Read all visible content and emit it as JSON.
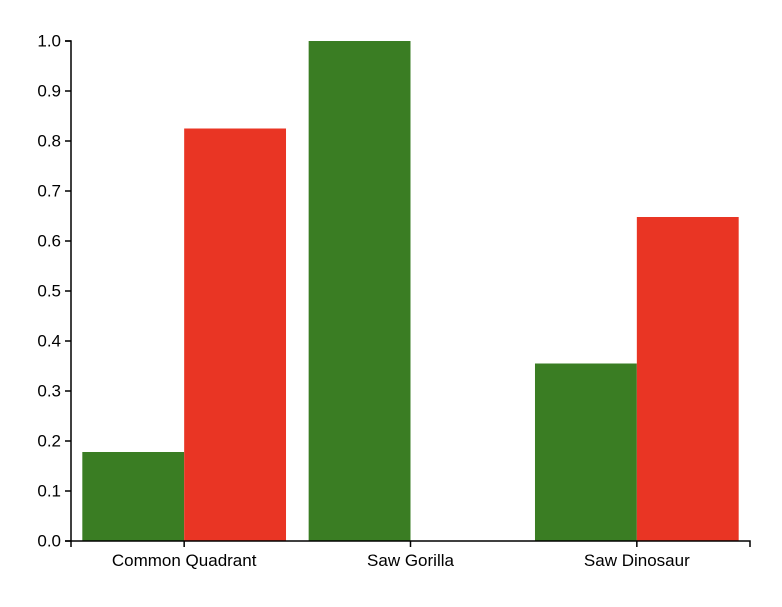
{
  "chart_data": {
    "type": "bar",
    "title": "",
    "xlabel": "",
    "ylabel": "",
    "categories": [
      "Common Quadrant",
      "Saw Gorilla",
      "Saw Dinosaur"
    ],
    "series": [
      {
        "color": "#3a7d23",
        "values": [
          0.178,
          1.0,
          0.355
        ]
      },
      {
        "color": "#e93524",
        "values": [
          0.825,
          0.0,
          0.648
        ]
      }
    ],
    "ylim": [
      0.0,
      1.0
    ],
    "yticks": [
      "0.0",
      "0.1",
      "0.2",
      "0.3",
      "0.4",
      "0.5",
      "0.6",
      "0.7",
      "0.8",
      "0.9",
      "1.0"
    ],
    "grid": false,
    "legend": "none"
  }
}
